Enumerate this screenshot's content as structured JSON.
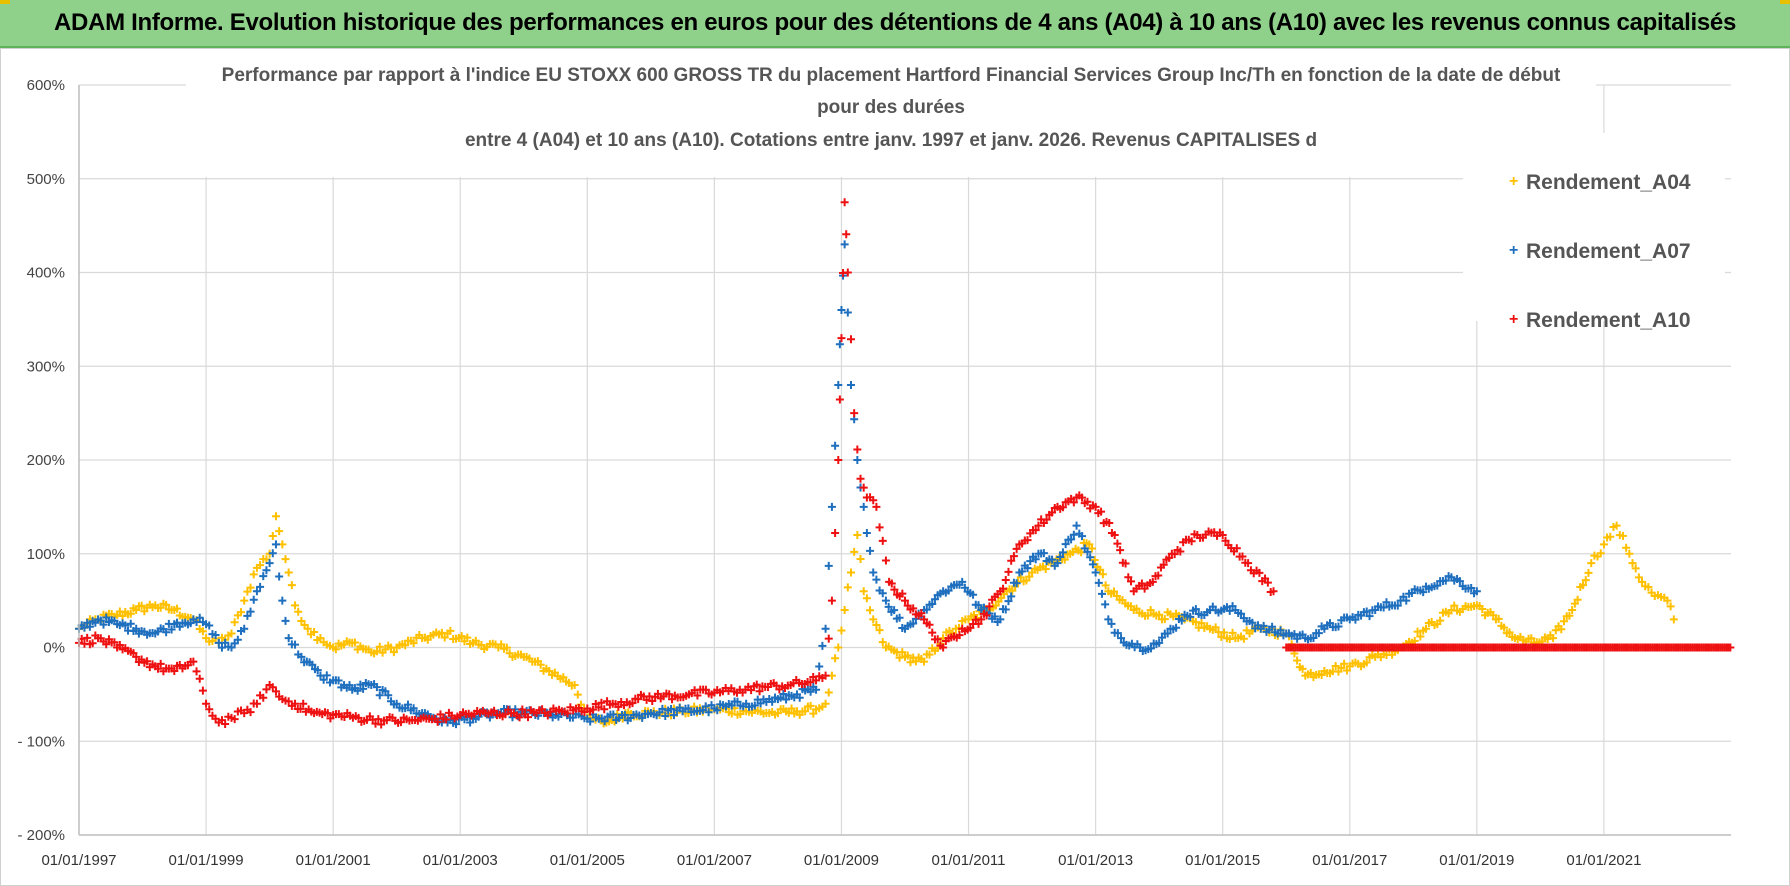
{
  "header": {
    "title": "ADAM Informe. Evolution historique des performances en euros pour des détentions de 4 ans (A04) à 10 ans (A10) avec les revenus connus capitalisés"
  },
  "colors": {
    "A04": "#ffc000",
    "A07": "#1f6fbf",
    "A10": "#ee1111",
    "grid": "#d9d9d9",
    "banner": "#8fd18a"
  },
  "chart_data": {
    "type": "scatter",
    "title_lines": [
      "Performance par rapport à l'indice EU STOXX 600 GROSS TR  du placement Hartford Financial Services  Group Inc/Th en fonction de la date de début",
      "pour des durées",
      "entre 4 (A04) et 10 ans (A10).  Cotations entre janv. 1997 et janv. 2026. Revenus CAPITALISES d"
    ],
    "xlabel": "",
    "ylabel": "",
    "xlim": [
      1997.0,
      2023.0
    ],
    "ylim": [
      -200,
      600
    ],
    "y_ticks": [
      -200,
      -100,
      0,
      100,
      200,
      300,
      400,
      500,
      600
    ],
    "y_tick_labels": [
      "- 200%",
      "- 100%",
      "0%",
      "100%",
      "200%",
      "300%",
      "400%",
      "500%",
      "600%"
    ],
    "x_ticks": [
      1997,
      1999,
      2001,
      2003,
      2005,
      2007,
      2009,
      2011,
      2013,
      2015,
      2017,
      2019,
      2021
    ],
    "x_tick_labels": [
      "01/01/1997",
      "01/01/1999",
      "01/01/2001",
      "01/01/2003",
      "01/01/2005",
      "01/01/2007",
      "01/01/2009",
      "01/01/2011",
      "01/01/2013",
      "01/01/2015",
      "01/01/2017",
      "01/01/2019",
      "01/01/2021"
    ],
    "grid": true,
    "legend_position": "top-right",
    "series": [
      {
        "name": "Rendement_A04",
        "color": "#ffc000",
        "x": [
          1997.0,
          1997.3,
          1997.6,
          1997.9,
          1998.2,
          1998.5,
          1998.8,
          1999.0,
          1999.2,
          1999.4,
          1999.6,
          1999.8,
          2000.0,
          2000.1,
          2000.2,
          2000.3,
          2000.4,
          2000.6,
          2000.8,
          2001.0,
          2001.3,
          2001.6,
          2002.0,
          2002.4,
          2002.8,
          2003.2,
          2003.6,
          2004.0,
          2004.4,
          2004.8,
          2005.0,
          2005.3,
          2005.6,
          2006.0,
          2006.5,
          2007.0,
          2007.5,
          2008.0,
          2008.3,
          2008.6,
          2008.75,
          2008.85,
          2008.95,
          2009.05,
          2009.15,
          2009.25,
          2009.35,
          2009.5,
          2009.7,
          2010.0,
          2010.3,
          2010.6,
          2010.8,
          2011.0,
          2011.3,
          2011.6,
          2012.0,
          2012.3,
          2012.6,
          2012.9,
          2013.2,
          2013.6,
          2014.0,
          2014.4,
          2014.8,
          2015.2,
          2015.6,
          2016.0,
          2016.3,
          2016.6,
          2017.0,
          2017.4,
          2017.8,
          2018.2,
          2018.6,
          2019.0,
          2019.3,
          2019.6,
          2019.9,
          2020.2,
          2020.5,
          2020.8,
          2021.0,
          2021.2,
          2021.4,
          2021.6,
          2021.8,
          2022.0,
          2022.1
        ],
        "y": [
          20,
          30,
          35,
          40,
          45,
          40,
          30,
          10,
          5,
          15,
          50,
          85,
          100,
          140,
          110,
          80,
          45,
          20,
          10,
          0,
          5,
          -5,
          0,
          10,
          15,
          5,
          0,
          -10,
          -25,
          -40,
          -75,
          -80,
          -70,
          -70,
          -68,
          -66,
          -68,
          -70,
          -68,
          -66,
          -60,
          -30,
          0,
          40,
          80,
          120,
          60,
          30,
          0,
          -10,
          -15,
          10,
          20,
          30,
          40,
          60,
          80,
          90,
          100,
          110,
          60,
          40,
          35,
          30,
          20,
          10,
          20,
          15,
          -30,
          -25,
          -20,
          -10,
          0,
          20,
          40,
          45,
          30,
          10,
          5,
          10,
          40,
          90,
          110,
          130,
          100,
          70,
          55,
          50,
          30
        ]
      },
      {
        "name": "Rendement_A07",
        "color": "#1f6fbf",
        "x": [
          1997.0,
          1997.3,
          1997.6,
          1997.9,
          1998.2,
          1998.5,
          1998.8,
          1999.0,
          1999.2,
          1999.4,
          1999.6,
          1999.8,
          2000.0,
          2000.1,
          2000.2,
          2000.3,
          2000.5,
          2000.8,
          2001.0,
          2001.3,
          2001.6,
          2002.0,
          2002.4,
          2002.8,
          2003.2,
          2003.6,
          2004.0,
          2004.5,
          2005.0,
          2005.5,
          2006.0,
          2006.5,
          2007.0,
          2007.5,
          2008.0,
          2008.3,
          2008.6,
          2008.75,
          2008.85,
          2008.95,
          2009.0,
          2009.05,
          2009.15,
          2009.25,
          2009.35,
          2009.5,
          2009.7,
          2010.0,
          2010.3,
          2010.6,
          2010.9,
          2011.2,
          2011.5,
          2011.8,
          2012.1,
          2012.4,
          2012.7,
          2013.0,
          2013.2,
          2013.4,
          2013.7,
          2014.0,
          2014.4,
          2014.8,
          2015.2,
          2015.6,
          2016.0,
          2016.3,
          2016.6,
          2017.0,
          2017.4,
          2017.8,
          2018.2,
          2018.6,
          2019.0
        ],
        "y": [
          20,
          30,
          25,
          20,
          15,
          25,
          30,
          25,
          5,
          0,
          20,
          60,
          90,
          110,
          50,
          10,
          -10,
          -30,
          -35,
          -45,
          -40,
          -60,
          -70,
          -80,
          -75,
          -70,
          -70,
          -72,
          -76,
          -75,
          -70,
          -68,
          -65,
          -60,
          -55,
          -50,
          -45,
          20,
          150,
          280,
          360,
          430,
          280,
          200,
          150,
          80,
          50,
          20,
          40,
          60,
          70,
          40,
          30,
          80,
          100,
          90,
          130,
          80,
          30,
          10,
          0,
          5,
          35,
          40,
          40,
          20,
          15,
          10,
          20,
          30,
          40,
          50,
          65,
          75,
          60
        ]
      },
      {
        "name": "Rendement_A10",
        "color": "#ee1111",
        "x": [
          1997.0,
          1997.3,
          1997.6,
          1997.9,
          1998.2,
          1998.5,
          1998.8,
          1999.0,
          1999.2,
          1999.4,
          1999.6,
          1999.8,
          2000.0,
          2000.2,
          2000.4,
          2000.7,
          2001.0,
          2001.4,
          2001.8,
          2002.2,
          2002.6,
          2003.0,
          2003.4,
          2003.8,
          2004.2,
          2004.6,
          2005.0,
          2005.4,
          2005.8,
          2006.2,
          2006.6,
          2007.0,
          2007.4,
          2007.8,
          2008.2,
          2008.6,
          2008.75,
          2008.85,
          2008.95,
          2009.0,
          2009.05,
          2009.1,
          2009.2,
          2009.3,
          2009.4,
          2009.55,
          2009.75,
          2010.0,
          2010.3,
          2010.6,
          2010.9,
          2011.2,
          2011.5,
          2011.8,
          2012.1,
          2012.4,
          2012.7,
          2013.0,
          2013.3,
          2013.6,
          2013.9,
          2014.2,
          2014.6,
          2015.0,
          2015.4,
          2015.8
        ],
        "y": [
          5,
          10,
          0,
          -10,
          -20,
          -25,
          -15,
          -60,
          -80,
          -75,
          -70,
          -60,
          -40,
          -55,
          -60,
          -70,
          -72,
          -75,
          -78,
          -78,
          -76,
          -72,
          -70,
          -70,
          -70,
          -68,
          -65,
          -60,
          -55,
          -52,
          -50,
          -48,
          -45,
          -42,
          -40,
          -35,
          -30,
          50,
          200,
          330,
          475,
          400,
          250,
          180,
          160,
          150,
          70,
          50,
          30,
          0,
          20,
          30,
          60,
          110,
          130,
          150,
          160,
          150,
          120,
          60,
          70,
          100,
          120,
          120,
          90,
          60
        ]
      }
    ],
    "flat_zero_segment": {
      "x_start": 2016.0,
      "x_end": 2023.0,
      "value": 0,
      "series": "Rendement_A10"
    }
  },
  "legend": {
    "items": [
      {
        "label": "Rendement_A04",
        "marker": "+",
        "color": "#ffc000"
      },
      {
        "label": "Rendement_A07",
        "marker": "+",
        "color": "#1f6fbf"
      },
      {
        "label": "Rendement_A10",
        "marker": "+",
        "color": "#ee1111"
      }
    ]
  }
}
